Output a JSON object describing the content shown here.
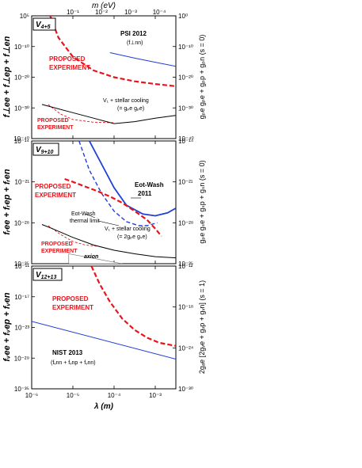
{
  "figure": {
    "top_axis": {
      "label": "m (eV)",
      "ticks": [
        "10⁻¹",
        "10⁻²",
        "10⁻³",
        "10⁻⁴"
      ]
    },
    "bottom_axis": {
      "label": "λ (m)",
      "ticks": [
        "10⁻⁶",
        "10⁻⁵",
        "10⁻⁴",
        "10⁻³"
      ]
    }
  },
  "colors": {
    "proposed": "#e8141b",
    "existing": "#1f3fd6",
    "stellar": "#000000"
  },
  "chart_data": [
    {
      "type": "line",
      "panel": "V4+5",
      "panel_label": "V",
      "panel_sub": "4+5",
      "ylabel_left": "f⊥ee + f⊥ep + f⊥en",
      "ylabel_right": "gₚe gₚe + gₚp + gₚn (s = 0)",
      "yticks_left": [
        "10⁵",
        "10⁻¹⁰",
        "10⁻²⁰",
        "10⁻³⁰",
        "10⁻⁴⁰"
      ],
      "yticks_right": [
        "10⁰",
        "10⁻¹⁰",
        "10⁻²⁰",
        "10⁻³⁰",
        "10⁻⁴⁰"
      ],
      "x_log_range": [
        -6,
        -2.5
      ],
      "y_log_range": [
        -40,
        5
      ],
      "series": [
        {
          "id": "proposed-upper",
          "style": "dashed-thick",
          "color": "#e8141b",
          "points": [
            [
              -5.55,
              5
            ],
            [
              -5.35,
              -3
            ],
            [
              -5.0,
              -10
            ],
            [
              -4.5,
              -15
            ],
            [
              -4.0,
              -17.5
            ],
            [
              -3.5,
              -19
            ],
            [
              -3.0,
              -20
            ],
            [
              -2.5,
              -20.8
            ]
          ]
        },
        {
          "id": "psi-2012",
          "style": "solid",
          "color": "#1f3fd6",
          "points": [
            [
              -4.1,
              -8.5
            ],
            [
              -3.5,
              -10.5
            ],
            [
              -3.0,
              -12
            ],
            [
              -2.5,
              -13.5
            ]
          ]
        },
        {
          "id": "proposed-lower",
          "style": "dashed-thin",
          "color": "#e8141b",
          "points": [
            [
              -5.6,
              -27.5
            ],
            [
              -5.3,
              -31
            ],
            [
              -5.0,
              -33
            ],
            [
              -4.5,
              -34
            ],
            [
              -4.0,
              -34.2
            ]
          ]
        },
        {
          "id": "stellar",
          "style": "solid",
          "color": "#000000",
          "points": [
            [
              -5.75,
              -27.5
            ],
            [
              -5.5,
              -28.5
            ],
            [
              -5.0,
              -30.5
            ],
            [
              -4.5,
              -32.5
            ],
            [
              -4.0,
              -34.5
            ],
            [
              -3.5,
              -33.8
            ],
            [
              -3.0,
              -32.5
            ],
            [
              -2.5,
              -31.5
            ]
          ]
        }
      ],
      "annotations": {
        "proposed_upper": [
          "PROPOSED",
          "EXPERIMENT"
        ],
        "psi": "PSI 2012",
        "psi_sub": "(f⊥nn)",
        "stellar": "V₁ + stellar cooling",
        "stellar_sub": "(= gₚe gₚe)",
        "proposed_lower": [
          "PROPOSED",
          "EXPERIMENT"
        ]
      }
    },
    {
      "type": "line",
      "panel": "V9+10",
      "panel_label": "V",
      "panel_sub": "9+10",
      "ylabel_left": "fᵣee + fᵣep + fᵣen",
      "ylabel_right": "gₚe gₛe + gₛp + gₛn (s = 0)",
      "yticks_left": [
        "10⁻¹⁴",
        "10⁻²¹",
        "10⁻²⁸",
        "10⁻³⁵"
      ],
      "yticks_right": [
        "10⁻¹⁴",
        "10⁻²¹",
        "10⁻²⁸",
        "10⁻³⁵"
      ],
      "x_log_range": [
        -6,
        -2.5
      ],
      "y_log_range": [
        -35,
        -14
      ],
      "series": [
        {
          "id": "eot-wash-2011",
          "style": "solid-thick",
          "color": "#1f3fd6",
          "points": [
            [
              -4.6,
              -14
            ],
            [
              -4.3,
              -18
            ],
            [
              -4.0,
              -22
            ],
            [
              -3.7,
              -25
            ],
            [
              -3.3,
              -26.5
            ],
            [
              -3.0,
              -26.8
            ],
            [
              -2.7,
              -26.3
            ],
            [
              -2.5,
              -25.5
            ]
          ]
        },
        {
          "id": "eot-wash-thermal",
          "style": "dashed",
          "color": "#1f3fd6",
          "points": [
            [
              -4.85,
              -14
            ],
            [
              -4.6,
              -19
            ],
            [
              -4.3,
              -23
            ],
            [
              -4.0,
              -26
            ],
            [
              -3.7,
              -27.8
            ],
            [
              -3.4,
              -28.5
            ],
            [
              -3.2,
              -28.5
            ],
            [
              -2.95,
              -28
            ]
          ]
        },
        {
          "id": "proposed-upper",
          "style": "dashed-thick",
          "color": "#e8141b",
          "points": [
            [
              -5.2,
              -20.5
            ],
            [
              -5.0,
              -21
            ],
            [
              -4.7,
              -21.8
            ],
            [
              -4.4,
              -22.6
            ],
            [
              -4.1,
              -23.5
            ],
            [
              -3.8,
              -24.6
            ],
            [
              -3.5,
              -26
            ],
            [
              -3.2,
              -27.5
            ],
            [
              -3.0,
              -29
            ],
            [
              -2.85,
              -30.3
            ]
          ]
        },
        {
          "id": "proposed-lower",
          "style": "dashed-thin",
          "color": "#e8141b",
          "points": [
            [
              -5.6,
              -28.5
            ],
            [
              -5.3,
              -30
            ],
            [
              -5.0,
              -31.2
            ],
            [
              -4.7,
              -31.8
            ],
            [
              -4.4,
              -32
            ]
          ]
        },
        {
          "id": "stellar",
          "style": "solid",
          "color": "#000000",
          "points": [
            [
              -5.75,
              -28.3
            ],
            [
              -5.5,
              -29
            ],
            [
              -5.0,
              -30.5
            ],
            [
              -4.5,
              -31.8
            ],
            [
              -4.0,
              -32.7
            ],
            [
              -3.5,
              -33.3
            ],
            [
              -3.0,
              -33.8
            ],
            [
              -2.5,
              -34
            ]
          ]
        }
      ],
      "annotations": {
        "proposed_upper": [
          "PROPOSED",
          "EXPERIMENT"
        ],
        "eot_wash": [
          "Eot-Wash",
          "2011"
        ],
        "thermal": [
          "Eot-Wash",
          "thermal limit"
        ],
        "stellar": "V₁ + stellar cooling",
        "stellar_sub": "(= 2gₚe gₛe)",
        "proposed_lower": [
          "PROPOSED",
          "EXPERIMENT"
        ],
        "axion": "axion"
      }
    },
    {
      "type": "line",
      "panel": "V12+13",
      "panel_label": "V",
      "panel_sub": "12+13",
      "ylabel_left": "fᵥee + fᵥep + fᵥen",
      "ylabel_right": "2gₐe [2gᵥe + gᵥp + gᵥn] (s = 1)",
      "yticks_left": [
        "10⁻¹¹",
        "10⁻¹⁷",
        "10⁻²³",
        "10⁻²⁹",
        "10⁻³⁵"
      ],
      "yticks_right": [
        "10⁻¹²",
        "10⁻¹⁸",
        "10⁻²⁴",
        "10⁻³⁰"
      ],
      "x_log_range": [
        -6,
        -2.5
      ],
      "y_log_range": [
        -35,
        -11
      ],
      "series": [
        {
          "id": "proposed",
          "style": "dashed-thick",
          "color": "#e8141b",
          "points": [
            [
              -4.55,
              -11
            ],
            [
              -4.35,
              -14.5
            ],
            [
              -4.1,
              -18
            ],
            [
              -3.8,
              -21.3
            ],
            [
              -3.5,
              -23.5
            ],
            [
              -3.2,
              -25
            ],
            [
              -2.9,
              -26
            ],
            [
              -2.5,
              -26.6
            ]
          ]
        },
        {
          "id": "nist-2013",
          "style": "solid",
          "color": "#1f3fd6",
          "points": [
            [
              -6.0,
              -21.8
            ],
            [
              -2.5,
              -29.2
            ]
          ]
        }
      ],
      "annotations": {
        "proposed": [
          "PROPOSED",
          "EXPERIMENT"
        ],
        "nist": "NIST 2013",
        "nist_sub": "(fᵥnn + fᵥnp + fᵥnn)"
      }
    }
  ]
}
